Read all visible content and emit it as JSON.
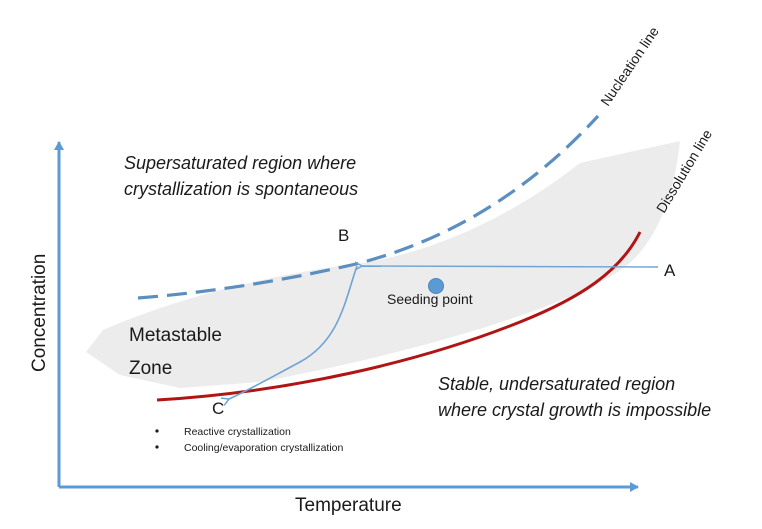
{
  "diagram": {
    "x_axis_label": "Temperature",
    "y_axis_label": "Concentration",
    "curves": {
      "nucleation": "Nucleation line",
      "dissolution": "Dissolution line"
    },
    "regions": {
      "supersaturated": [
        "Supersaturated region where",
        "crystallization is spontaneous"
      ],
      "metastable": [
        "Metastable",
        "Zone"
      ],
      "stable": [
        "Stable, undersaturated region",
        "where crystal growth is impossible"
      ]
    },
    "points": {
      "a": "A",
      "b": "B",
      "c": "C",
      "seeding": "Seeding point"
    },
    "legend": [
      "Reactive crystallization",
      "Cooling/evaporation crystallization"
    ],
    "colors": {
      "axis": "#5b9bd5",
      "nucleation_line": "#5b8fc0",
      "dissolution_line": "#b01414",
      "metastable_fill": "#ececec",
      "path_line": "#6fa3d4",
      "seeding_point": "#5b9bd5"
    }
  }
}
